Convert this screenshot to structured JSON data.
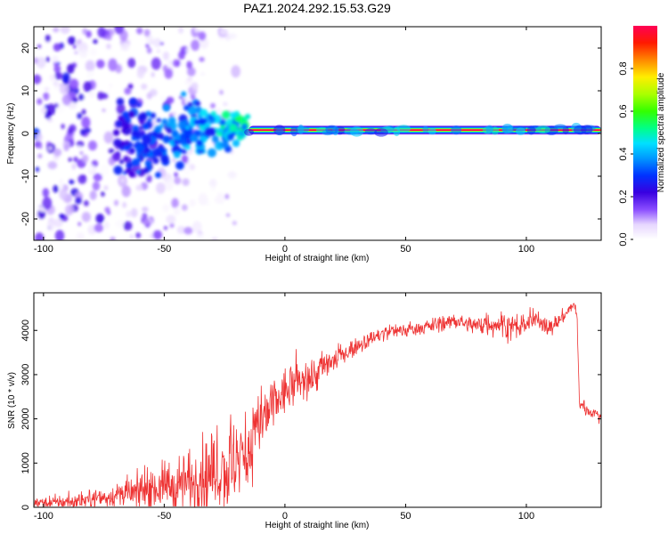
{
  "title": "PAZ1.2024.292.15.53.G29",
  "chart_data": [
    {
      "type": "heatmap",
      "title": "PAZ1.2024.292.15.53.G29",
      "xlabel": "Height of straight line (km)",
      "ylabel": "Frequency (Hz)",
      "xlim": [
        -104,
        131
      ],
      "ylim": [
        -25,
        25
      ],
      "x_ticks": [
        -100,
        -50,
        0,
        50,
        100
      ],
      "y_ticks": [
        -20,
        -10,
        0,
        10,
        20
      ],
      "signal_band": {
        "x_start": -15,
        "x_end": 131,
        "frequency_hz": 0.8,
        "amplitude": 1.0
      },
      "transition_region": {
        "x_start": -70,
        "x_end": -15,
        "frequency_hz": 0,
        "amplitude_range": [
          0.1,
          0.5
        ]
      },
      "noise_region": {
        "x_start": -104,
        "x_end": -20,
        "amplitude_range": [
          0.0,
          0.2
        ]
      },
      "colorbar": {
        "label": "Normalized spectral amplitude",
        "range": [
          0,
          1
        ],
        "ticks": [
          "0.0",
          "0.2",
          "0.4",
          "0.6",
          "0.8"
        ]
      }
    },
    {
      "type": "line",
      "xlabel": "Height of straight line (km)",
      "ylabel": "SNR (10 * v/v)",
      "xlim": [
        -104,
        131
      ],
      "ylim": [
        0,
        4850
      ],
      "x_ticks": [
        -100,
        -50,
        0,
        50,
        100
      ],
      "y_ticks": [
        0,
        1000,
        2000,
        3000,
        4000
      ],
      "color": "#ee3333",
      "series": [
        {
          "x": [
            -104,
            -90,
            -80,
            -70,
            -60,
            -50,
            -40,
            -30,
            -20,
            -15,
            -10,
            -5,
            0,
            5,
            10,
            15,
            20,
            25,
            30,
            35,
            40,
            45,
            50,
            55,
            60,
            65,
            70,
            75,
            80,
            85,
            90,
            95,
            100,
            105,
            110,
            115,
            119,
            120,
            121,
            122,
            125,
            131
          ],
          "values": [
            100,
            120,
            180,
            250,
            350,
            480,
            600,
            750,
            900,
            1400,
            1800,
            2300,
            2600,
            2800,
            2900,
            3100,
            3300,
            3500,
            3650,
            3800,
            3900,
            4000,
            4000,
            4050,
            4100,
            4150,
            4200,
            4150,
            4100,
            4150,
            4150,
            4050,
            4150,
            4250,
            4050,
            4300,
            4550,
            4600,
            4200,
            2350,
            2200,
            2050
          ],
          "noise_amplitude": [
            120,
            150,
            180,
            250,
            350,
            500,
            700,
            800,
            900,
            800,
            700,
            600,
            500,
            450,
            400,
            350,
            250,
            200,
            180,
            160,
            150,
            150,
            150,
            150,
            150,
            150,
            150,
            150,
            200,
            250,
            250,
            300,
            250,
            200,
            200,
            150,
            100,
            100,
            100,
            120,
            120,
            120
          ]
        }
      ]
    }
  ]
}
